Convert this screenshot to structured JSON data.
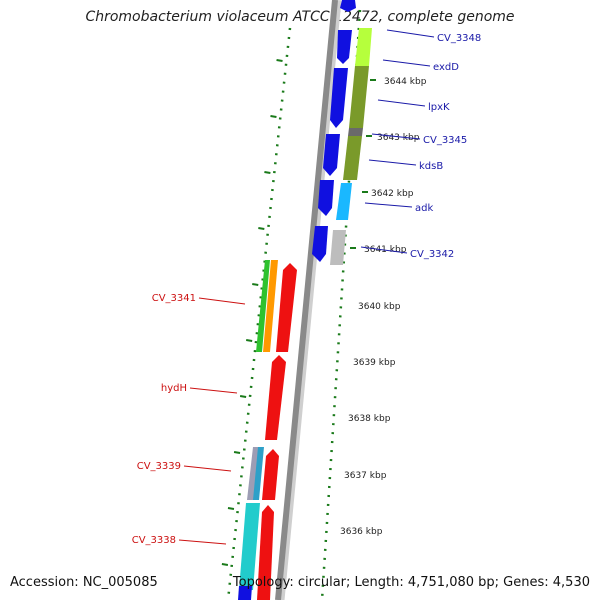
{
  "title": "Chromobacterium violaceum ATCC 12472, complete genome",
  "accession": "Accession: NC_005085",
  "topology": "Topology: circular; Length: 4,751,080 bp; Genes: 4,530",
  "ticks": [
    "3644 kbp",
    "3643 kbp",
    "3642 kbp",
    "3641 kbp",
    "3640 kbp",
    "3639 kbp",
    "3638 kbp",
    "3637 kbp",
    "3636 kbp"
  ],
  "genes_right": [
    "CV_3348",
    "exdD",
    "lpxK",
    "CV_3345",
    "kdsB",
    "adk",
    "CV_3342"
  ],
  "genes_left": [
    "CV_3341",
    "hydH",
    "CV_3339",
    "CV_3338"
  ],
  "colors": {
    "forward": "#1010e0",
    "reverse": "#ee1111",
    "label_right": "#1a1aa8",
    "label_left": "#cc1111",
    "dots": "#1a7a1a",
    "backbone": "#8a8a8a"
  }
}
